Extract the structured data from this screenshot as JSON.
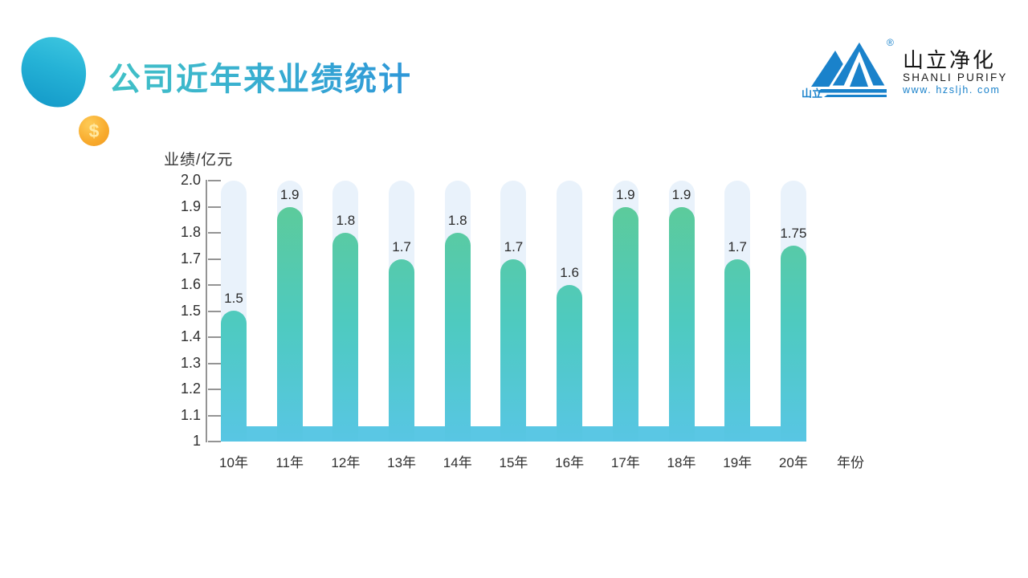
{
  "slide": {
    "title": "公司近年来业绩统计",
    "coin_symbol": "$"
  },
  "logo": {
    "name_cn": "山立净化",
    "name_en": "SHANLI PURIFY",
    "website": "www. hzsljh. com",
    "mark_text": "山立",
    "registered": "®",
    "brand_color": "#1a82cb"
  },
  "chart_data": {
    "type": "bar",
    "title": "公司近年来业绩统计",
    "ylabel": "业绩/亿元",
    "xlabel": "年份",
    "categories": [
      "10年",
      "11年",
      "12年",
      "13年",
      "14年",
      "15年",
      "16年",
      "17年",
      "18年",
      "19年",
      "20年"
    ],
    "values": [
      1.5,
      1.9,
      1.8,
      1.7,
      1.8,
      1.7,
      1.6,
      1.9,
      1.9,
      1.7,
      1.75
    ],
    "value_labels": [
      "1.5",
      "1.9",
      "1.8",
      "1.7",
      "1.8",
      "1.7",
      "1.6",
      "1.9",
      "1.9",
      "1.7",
      "1.75"
    ],
    "ylim": [
      1,
      2.0
    ],
    "yticks": [
      "2.0",
      "1.9",
      "1.8",
      "1.7",
      "1.6",
      "1.5",
      "1.4",
      "1.3",
      "1.2",
      "1.1",
      "1"
    ],
    "grid": false,
    "legend": false,
    "colors": {
      "bar_gradient_top": "#5fcb93",
      "bar_gradient_mid": "#4ecac0",
      "bar_gradient_bottom": "#58c6e4",
      "track": "#e9f2fb",
      "baseline": "#5ac7e4",
      "axis": "#949494",
      "text": "#2b2b2b"
    }
  }
}
